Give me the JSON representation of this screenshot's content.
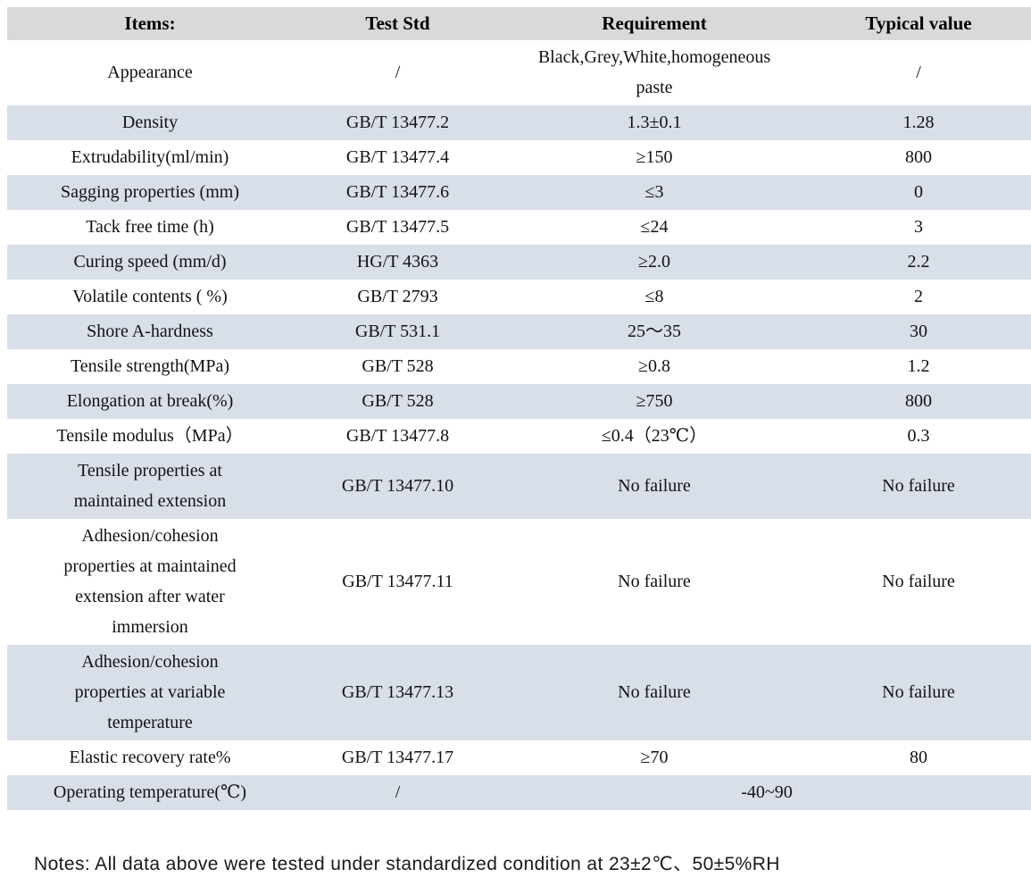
{
  "colors": {
    "header_bg": "#d9d9d9",
    "band_bg": "#d9dfe9",
    "text": "#121212"
  },
  "table": {
    "headers": [
      "Items:",
      "Test Std",
      "Requirement",
      "Typical value"
    ],
    "rows": [
      {
        "item": "Appearance",
        "std": "/",
        "req": "Black,Grey,White,homogeneous\npaste",
        "typ": "/",
        "shaded": false,
        "merged": false
      },
      {
        "item": "Density",
        "std": "GB/T 13477.2",
        "req": "1.3±0.1",
        "typ": "1.28",
        "shaded": true,
        "merged": false
      },
      {
        "item": "Extrudability(ml/min)",
        "std": "GB/T 13477.4",
        "req": "≥150",
        "typ": "800",
        "shaded": false,
        "merged": false
      },
      {
        "item": "Sagging properties (mm)",
        "std": "GB/T 13477.6",
        "req": "≤3",
        "typ": "0",
        "shaded": true,
        "merged": false
      },
      {
        "item": "Tack free time (h)",
        "std": "GB/T 13477.5",
        "req": "≤24",
        "typ": "3",
        "shaded": false,
        "merged": false
      },
      {
        "item": "Curing speed (mm/d)",
        "std": "HG/T 4363",
        "req": "≥2.0",
        "typ": "2.2",
        "shaded": true,
        "merged": false
      },
      {
        "item": "Volatile contents ( %)",
        "std": "GB/T 2793",
        "req": "≤8",
        "typ": "2",
        "shaded": false,
        "merged": false
      },
      {
        "item": "Shore A-hardness",
        "std": "GB/T 531.1",
        "req": "25～35",
        "typ": "30",
        "shaded": true,
        "merged": false
      },
      {
        "item": "Tensile strength(MPa)",
        "std": "GB/T 528",
        "req": "≥0.8",
        "typ": "1.2",
        "shaded": false,
        "merged": false
      },
      {
        "item": "Elongation at break(%)",
        "std": "GB/T 528",
        "req": "≥750",
        "typ": "800",
        "shaded": true,
        "merged": false
      },
      {
        "item": "Tensile modulus（MPa）",
        "std": "GB/T 13477.8",
        "req": "≤0.4（23℃）",
        "typ": "0.3",
        "shaded": false,
        "merged": false
      },
      {
        "item": "Tensile properties at\nmaintained extension",
        "std": "GB/T 13477.10",
        "req": "No failure",
        "typ": "No failure",
        "shaded": true,
        "merged": false
      },
      {
        "item": "Adhesion/cohesion\nproperties at maintained\nextension after water\nimmersion",
        "std": "GB/T 13477.11",
        "req": "No failure",
        "typ": "No failure",
        "shaded": false,
        "merged": false
      },
      {
        "item": "Adhesion/cohesion\nproperties at variable\ntemperature",
        "std": "GB/T 13477.13",
        "req": "No failure",
        "typ": "No failure",
        "shaded": true,
        "merged": false
      },
      {
        "item": "Elastic recovery rate%",
        "std": "GB/T 13477.17",
        "req": "≥70",
        "typ": "80",
        "shaded": false,
        "merged": false
      },
      {
        "item": "Operating temperature(℃)",
        "std": "/",
        "req": "-40~90",
        "typ": "",
        "shaded": true,
        "merged": true
      }
    ]
  },
  "notes": {
    "text": "Notes: All data above were tested under standardized condition at 23±2℃、50±5%RH"
  }
}
